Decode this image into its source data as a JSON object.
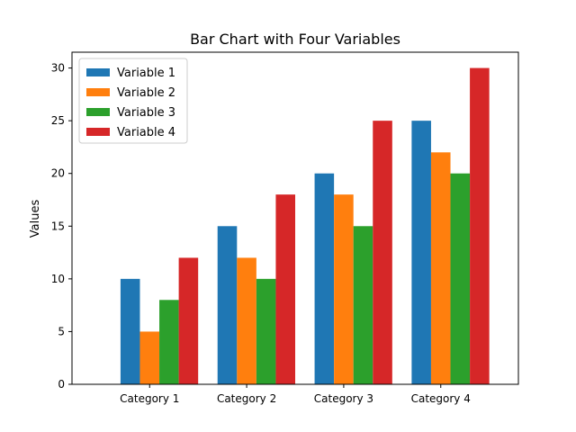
{
  "chart_data": {
    "type": "bar",
    "title": "Bar Chart with Four Variables",
    "xlabel": "",
    "ylabel": "Values",
    "ylim": [
      0,
      31.5
    ],
    "yticks": [
      0,
      5,
      10,
      15,
      20,
      25,
      30
    ],
    "grid": false,
    "legend": "top-left",
    "categories": [
      "Category 1",
      "Category 2",
      "Category 3",
      "Category 4"
    ],
    "series": [
      {
        "name": "Variable 1",
        "color": "#1f77b4",
        "values": [
          10,
          15,
          20,
          25
        ]
      },
      {
        "name": "Variable 2",
        "color": "#ff7f0e",
        "values": [
          5,
          12,
          18,
          22
        ]
      },
      {
        "name": "Variable 3",
        "color": "#2ca02c",
        "values": [
          8,
          10,
          15,
          20
        ]
      },
      {
        "name": "Variable 4",
        "color": "#d62728",
        "values": [
          12,
          18,
          25,
          30
        ]
      }
    ]
  }
}
